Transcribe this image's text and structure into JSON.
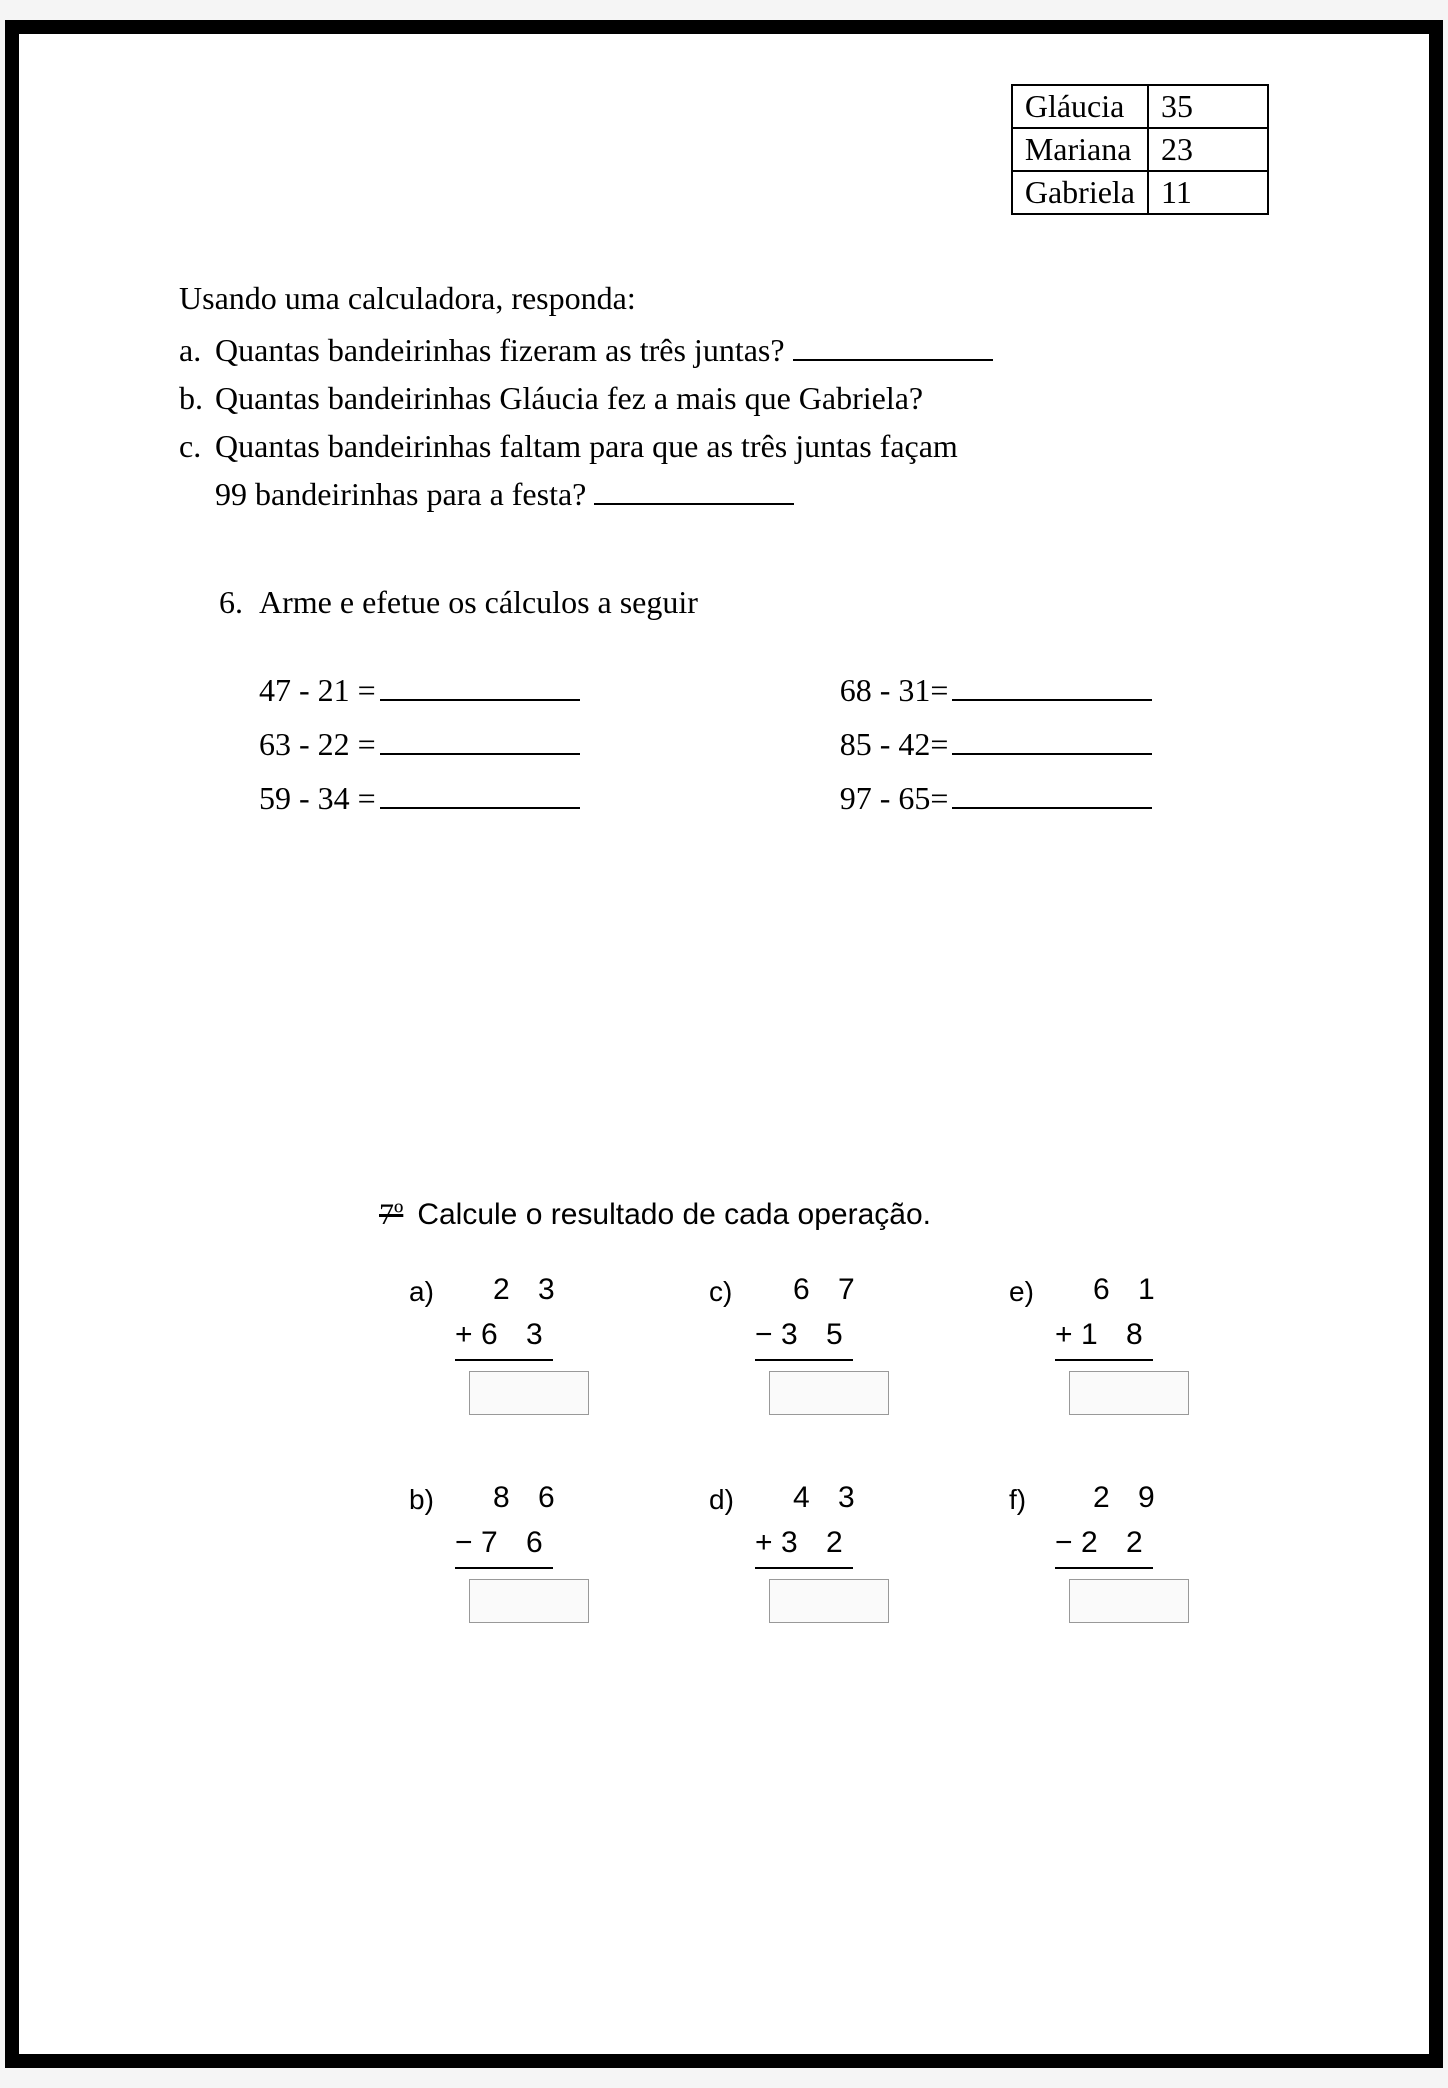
{
  "table": {
    "rows": [
      {
        "name": "Gláucia",
        "value": "35"
      },
      {
        "name": "Mariana",
        "value": "23"
      },
      {
        "name": "Gabriela",
        "value": "11"
      }
    ]
  },
  "intro": "Usando uma calculadora, responda:",
  "questions": {
    "a": {
      "letter": "a.",
      "text": "Quantas bandeirinhas fizeram as três juntas?"
    },
    "b": {
      "letter": "b.",
      "text": "Quantas bandeirinhas Gláucia fez a mais que Gabriela?"
    },
    "c": {
      "letter": "c.",
      "text1": "Quantas bandeirinhas faltam para que as três juntas façam",
      "text2": "99 bandeirinhas para a festa?"
    }
  },
  "section6": {
    "number": "6.",
    "title": "Arme e efetue os cálculos a seguir",
    "left": [
      "47 - 21 =",
      "63 - 22 =",
      "59 - 34 ="
    ],
    "right": [
      "68 - 31=",
      "85 - 42=",
      "97 - 65="
    ]
  },
  "section7": {
    "number": "7º",
    "title": "Calcule o resultado de cada operação.",
    "ops": {
      "a": {
        "label": "a)",
        "top": "2 3",
        "sign": "+",
        "bottom": "6 3"
      },
      "b": {
        "label": "b)",
        "top": "8 6",
        "sign": "−",
        "bottom": "7 6"
      },
      "c": {
        "label": "c)",
        "top": "6 7",
        "sign": "−",
        "bottom": "3 5"
      },
      "d": {
        "label": "d)",
        "top": "4 3",
        "sign": "+",
        "bottom": "3 2"
      },
      "e": {
        "label": "e)",
        "top": "6 1",
        "sign": "+",
        "bottom": "1 8"
      },
      "f": {
        "label": "f)",
        "top": "2 9",
        "sign": "−",
        "bottom": "2 2"
      }
    }
  }
}
